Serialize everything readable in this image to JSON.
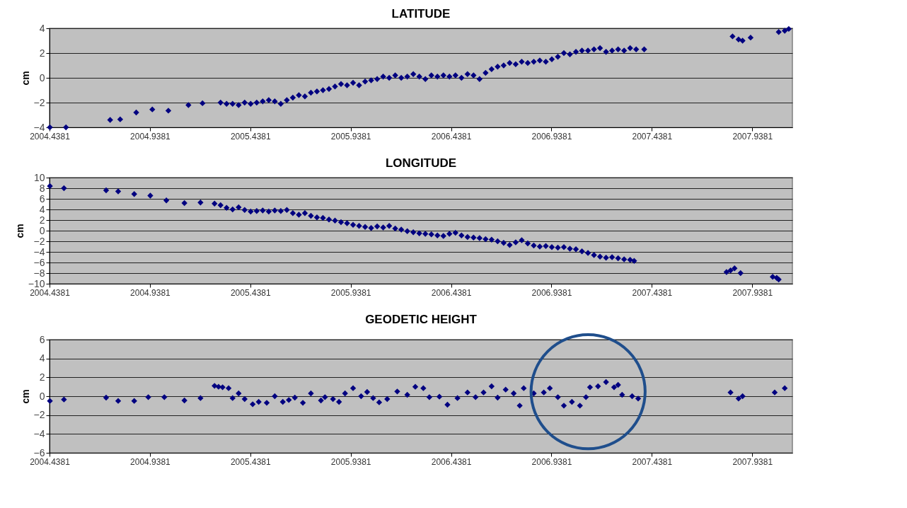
{
  "chart_data": [
    {
      "type": "scatter",
      "title": "LATITUDE",
      "ylabel": "cm",
      "xlim": [
        2004.4381,
        2008.1381
      ],
      "xticks": [
        2004.4381,
        2004.9381,
        2005.4381,
        2005.9381,
        2006.4381,
        2006.9381,
        2007.4381,
        2007.9381
      ],
      "ylim": [
        -4,
        4
      ],
      "yticks": [
        -4,
        -2,
        0,
        2,
        4
      ],
      "grid": "y",
      "marker": "diamond",
      "legend": false,
      "series": [
        {
          "color": "#000080",
          "x": [
            2004.44,
            2004.52,
            2004.74,
            2004.79,
            2004.87,
            2004.95,
            2005.03,
            2005.13,
            2005.2,
            2005.29,
            2005.32,
            2005.35,
            2005.38,
            2005.41,
            2005.44,
            2005.47,
            2005.5,
            2005.53,
            2005.56,
            2005.59,
            2005.62,
            2005.65,
            2005.68,
            2005.71,
            2005.74,
            2005.77,
            2005.8,
            2005.83,
            2005.86,
            2005.89,
            2005.92,
            2005.95,
            2005.98,
            2006.01,
            2006.04,
            2006.07,
            2006.1,
            2006.13,
            2006.16,
            2006.19,
            2006.22,
            2006.25,
            2006.28,
            2006.31,
            2006.34,
            2006.37,
            2006.4,
            2006.43,
            2006.46,
            2006.49,
            2006.52,
            2006.55,
            2006.58,
            2006.61,
            2006.64,
            2006.67,
            2006.7,
            2006.73,
            2006.76,
            2006.79,
            2006.82,
            2006.85,
            2006.88,
            2006.91,
            2006.94,
            2006.97,
            2007.0,
            2007.03,
            2007.06,
            2007.09,
            2007.12,
            2007.15,
            2007.18,
            2007.21,
            2007.24,
            2007.27,
            2007.3,
            2007.33,
            2007.36,
            2007.4,
            2007.84,
            2007.87,
            2007.89,
            2007.93,
            2008.07,
            2008.1,
            2008.12
          ],
          "values": [
            -4.0,
            -4.0,
            -3.4,
            -3.35,
            -2.8,
            -2.55,
            -2.65,
            -2.2,
            -2.05,
            -2.0,
            -2.1,
            -2.1,
            -2.2,
            -2.0,
            -2.1,
            -2.0,
            -1.9,
            -1.8,
            -1.9,
            -2.1,
            -1.8,
            -1.6,
            -1.4,
            -1.5,
            -1.2,
            -1.1,
            -1.0,
            -0.9,
            -0.7,
            -0.5,
            -0.6,
            -0.4,
            -0.6,
            -0.3,
            -0.2,
            -0.1,
            0.1,
            0.0,
            0.2,
            0.0,
            0.1,
            0.3,
            0.1,
            -0.1,
            0.2,
            0.1,
            0.2,
            0.1,
            0.2,
            0.0,
            0.3,
            0.2,
            -0.1,
            0.4,
            0.7,
            0.9,
            1.0,
            1.2,
            1.1,
            1.3,
            1.2,
            1.3,
            1.4,
            1.3,
            1.5,
            1.7,
            2.0,
            1.9,
            2.1,
            2.2,
            2.2,
            2.3,
            2.4,
            2.1,
            2.2,
            2.3,
            2.2,
            2.4,
            2.3,
            2.3,
            3.35,
            3.1,
            3.0,
            3.25,
            3.7,
            3.8,
            3.95
          ]
        }
      ]
    },
    {
      "type": "scatter",
      "title": "LONGITUDE",
      "ylabel": "cm",
      "xlim": [
        2004.4381,
        2008.1381
      ],
      "xticks": [
        2004.4381,
        2004.9381,
        2005.4381,
        2005.9381,
        2006.4381,
        2006.9381,
        2007.4381,
        2007.9381
      ],
      "ylim": [
        -10,
        10
      ],
      "yticks": [
        -10,
        -8,
        -6,
        -4,
        -2,
        0,
        2,
        4,
        6,
        8,
        10
      ],
      "grid": "y",
      "marker": "diamond",
      "legend": false,
      "series": [
        {
          "color": "#000080",
          "x": [
            2004.44,
            2004.51,
            2004.72,
            2004.78,
            2004.86,
            2004.94,
            2005.02,
            2005.11,
            2005.19,
            2005.26,
            2005.29,
            2005.32,
            2005.35,
            2005.38,
            2005.41,
            2005.44,
            2005.47,
            2005.5,
            2005.53,
            2005.56,
            2005.59,
            2005.62,
            2005.65,
            2005.68,
            2005.71,
            2005.74,
            2005.77,
            2005.8,
            2005.83,
            2005.86,
            2005.89,
            2005.92,
            2005.95,
            2005.98,
            2006.01,
            2006.04,
            2006.07,
            2006.1,
            2006.13,
            2006.16,
            2006.19,
            2006.22,
            2006.25,
            2006.28,
            2006.31,
            2006.34,
            2006.37,
            2006.4,
            2006.43,
            2006.46,
            2006.49,
            2006.52,
            2006.55,
            2006.58,
            2006.61,
            2006.64,
            2006.67,
            2006.7,
            2006.73,
            2006.76,
            2006.79,
            2006.82,
            2006.85,
            2006.88,
            2006.91,
            2006.94,
            2006.97,
            2007.0,
            2007.03,
            2007.06,
            2007.09,
            2007.12,
            2007.15,
            2007.18,
            2007.21,
            2007.24,
            2007.27,
            2007.3,
            2007.33,
            2007.35,
            2007.81,
            2007.83,
            2007.85,
            2007.88,
            2008.04,
            2008.06,
            2008.07
          ],
          "values": [
            8.4,
            8.0,
            7.6,
            7.4,
            6.9,
            6.6,
            5.7,
            5.2,
            5.3,
            5.1,
            4.8,
            4.3,
            4.0,
            4.4,
            3.9,
            3.6,
            3.7,
            3.8,
            3.6,
            3.8,
            3.7,
            3.9,
            3.3,
            3.0,
            3.3,
            2.8,
            2.5,
            2.4,
            2.1,
            1.9,
            1.6,
            1.4,
            1.1,
            0.9,
            0.7,
            0.5,
            0.8,
            0.6,
            0.9,
            0.4,
            0.2,
            -0.1,
            -0.3,
            -0.5,
            -0.6,
            -0.7,
            -0.9,
            -1.0,
            -0.6,
            -0.4,
            -0.9,
            -1.2,
            -1.3,
            -1.4,
            -1.6,
            -1.7,
            -2.0,
            -2.3,
            -2.7,
            -2.2,
            -1.8,
            -2.4,
            -2.8,
            -3.0,
            -2.9,
            -3.1,
            -3.2,
            -3.1,
            -3.4,
            -3.5,
            -3.9,
            -4.2,
            -4.6,
            -4.9,
            -5.1,
            -5.0,
            -5.2,
            -5.4,
            -5.5,
            -5.7,
            -7.8,
            -7.5,
            -7.1,
            -8.0,
            -8.7,
            -8.9,
            -9.2
          ]
        }
      ]
    },
    {
      "type": "scatter",
      "title": "GEODETIC HEIGHT",
      "ylabel": "cm",
      "xlim": [
        2004.4381,
        2008.1381
      ],
      "xticks": [
        2004.4381,
        2004.9381,
        2005.4381,
        2005.9381,
        2006.4381,
        2006.9381,
        2007.4381,
        2007.9381
      ],
      "ylim": [
        -6,
        6
      ],
      "yticks": [
        -6,
        -4,
        -2,
        0,
        2,
        4,
        6
      ],
      "grid": "y",
      "marker": "diamond",
      "legend": false,
      "series": [
        {
          "color": "#000080",
          "x": [
            2004.44,
            2004.51,
            2004.72,
            2004.78,
            2004.86,
            2004.93,
            2005.01,
            2005.11,
            2005.19,
            2005.26,
            2005.28,
            2005.3,
            2005.33,
            2005.35,
            2005.38,
            2005.41,
            2005.45,
            2005.48,
            2005.52,
            2005.56,
            2005.6,
            2005.63,
            2005.66,
            2005.7,
            2005.74,
            2005.79,
            2005.81,
            2005.85,
            2005.88,
            2005.91,
            2005.95,
            2005.99,
            2006.02,
            2006.05,
            2006.08,
            2006.12,
            2006.17,
            2006.22,
            2006.26,
            2006.3,
            2006.33,
            2006.38,
            2006.42,
            2006.47,
            2006.52,
            2006.56,
            2006.6,
            2006.64,
            2006.67,
            2006.71,
            2006.75,
            2006.78,
            2006.8,
            2006.85,
            2006.9,
            2006.93,
            2006.97,
            2007.0,
            2007.04,
            2007.08,
            2007.11,
            2007.13,
            2007.17,
            2007.21,
            2007.25,
            2007.27,
            2007.29,
            2007.34,
            2007.37,
            2007.83,
            2007.87,
            2007.89,
            2008.05,
            2008.1
          ],
          "values": [
            -0.5,
            -0.35,
            -0.15,
            -0.5,
            -0.5,
            -0.1,
            -0.1,
            -0.45,
            -0.2,
            1.1,
            1.0,
            0.95,
            0.85,
            -0.2,
            0.3,
            -0.3,
            -0.85,
            -0.6,
            -0.7,
            0.0,
            -0.6,
            -0.4,
            -0.15,
            -0.7,
            0.3,
            -0.45,
            -0.1,
            -0.3,
            -0.6,
            0.3,
            0.85,
            0.0,
            0.45,
            -0.2,
            -0.65,
            -0.3,
            0.5,
            0.15,
            1.0,
            0.85,
            -0.1,
            -0.05,
            -0.9,
            -0.2,
            0.4,
            -0.1,
            0.4,
            1.05,
            -0.15,
            0.7,
            0.3,
            -1.0,
            0.85,
            0.3,
            0.4,
            0.85,
            -0.1,
            -1.0,
            -0.6,
            -1.0,
            -0.1,
            0.95,
            1.05,
            1.5,
            0.95,
            1.2,
            0.15,
            0.0,
            -0.25,
            0.4,
            -0.25,
            0.0,
            0.4,
            0.85
          ]
        }
      ]
    }
  ]
}
